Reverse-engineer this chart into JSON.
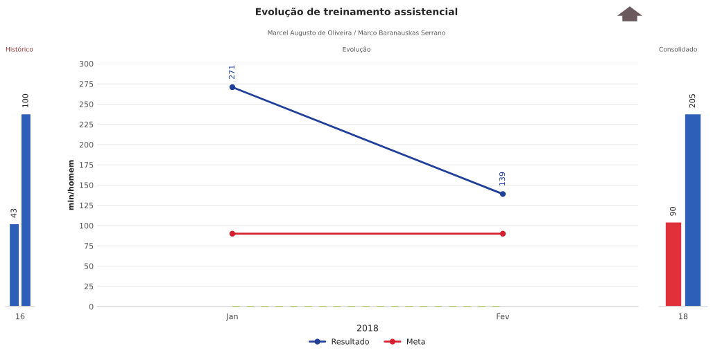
{
  "chart_data": [
    {
      "type": "bar",
      "title": "Histórico",
      "categories": [
        "16"
      ],
      "data_labels": true,
      "tick_labels": "x",
      "grid": false,
      "legend": false,
      "series": [
        {
          "color": "#2e5fb8",
          "values": [
            43
          ]
        },
        {
          "color": "#2e5fb8",
          "values": [
            100
          ]
        }
      ]
    },
    {
      "type": "line",
      "title": "Evolução de treinamento assistencial",
      "subtitle": "Marcel Augusto de Oliveira / Marco Baranauskas Serrano",
      "annotations": [
        "Evolução"
      ],
      "categories": [
        "Jan",
        "Fev"
      ],
      "xlabel": "2018",
      "ylabel": "min/homem",
      "ylim": [
        0,
        300
      ],
      "yticks": [
        0,
        25,
        50,
        75,
        100,
        125,
        150,
        175,
        200,
        225,
        250,
        275,
        300
      ],
      "grid": "y",
      "legend": "bottom",
      "marker": "circle",
      "series": [
        {
          "name": "Resultado",
          "color": "#1f3f99",
          "values": [
            271,
            139
          ],
          "value_labels": [
            "271",
            "139"
          ]
        },
        {
          "name": "Meta",
          "color": "#d62030",
          "values": [
            90,
            90
          ]
        },
        {
          "color": "#a8c84a",
          "values": [
            0,
            0
          ],
          "line_style": "dashed",
          "marker": "none"
        }
      ]
    },
    {
      "type": "bar",
      "title": "Consolidado",
      "categories": [
        "18"
      ],
      "data_labels": true,
      "tick_labels": "x",
      "grid": false,
      "legend": false,
      "series": [
        {
          "color": "#e0303a",
          "values": [
            90
          ]
        },
        {
          "color": "#2e5fb8",
          "values": [
            205
          ]
        }
      ]
    }
  ]
}
